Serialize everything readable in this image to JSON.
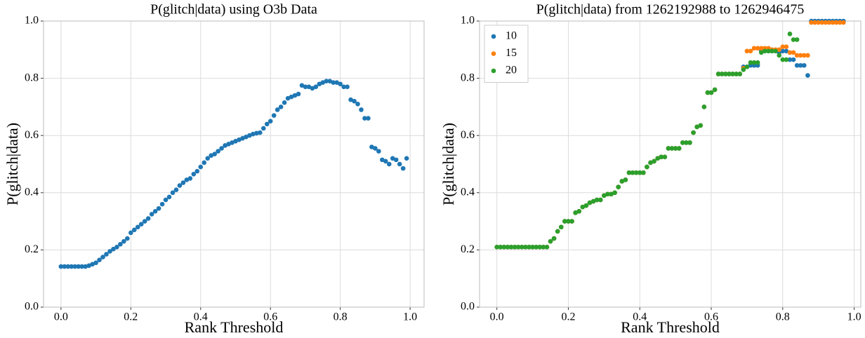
{
  "chart_data": [
    {
      "type": "scatter",
      "title": "P(glitch|data) using O3b Data",
      "xlabel": "Rank Threshold",
      "ylabel": "P(glitch|data)",
      "x": [
        0,
        0.01,
        0.02,
        0.03,
        0.04,
        0.05,
        0.06,
        0.07,
        0.08,
        0.09,
        0.1,
        0.11,
        0.12,
        0.13,
        0.14,
        0.15,
        0.16,
        0.17,
        0.18,
        0.19,
        0.2,
        0.21,
        0.22,
        0.23,
        0.24,
        0.25,
        0.26,
        0.27,
        0.28,
        0.29,
        0.3,
        0.31,
        0.32,
        0.33,
        0.34,
        0.35,
        0.36,
        0.37,
        0.38,
        0.39,
        0.4,
        0.41,
        0.42,
        0.43,
        0.44,
        0.45,
        0.46,
        0.47,
        0.48,
        0.49,
        0.5,
        0.51,
        0.52,
        0.53,
        0.54,
        0.55,
        0.56,
        0.57,
        0.58,
        0.59,
        0.6,
        0.61,
        0.62,
        0.63,
        0.64,
        0.65,
        0.66,
        0.67,
        0.68,
        0.69,
        0.7,
        0.71,
        0.72,
        0.73,
        0.74,
        0.75,
        0.76,
        0.77,
        0.78,
        0.79,
        0.8,
        0.81,
        0.82,
        0.83,
        0.84,
        0.85,
        0.86,
        0.87,
        0.88,
        0.89,
        0.9,
        0.91,
        0.92,
        0.93,
        0.94,
        0.95,
        0.96,
        0.97,
        0.98,
        0.99
      ],
      "values": [
        0.142,
        0.142,
        0.142,
        0.142,
        0.142,
        0.142,
        0.142,
        0.142,
        0.145,
        0.15,
        0.155,
        0.165,
        0.175,
        0.185,
        0.195,
        0.203,
        0.21,
        0.22,
        0.23,
        0.24,
        0.26,
        0.27,
        0.28,
        0.29,
        0.3,
        0.31,
        0.325,
        0.335,
        0.345,
        0.36,
        0.375,
        0.385,
        0.4,
        0.41,
        0.425,
        0.435,
        0.445,
        0.45,
        0.465,
        0.475,
        0.49,
        0.505,
        0.52,
        0.53,
        0.535,
        0.545,
        0.555,
        0.565,
        0.57,
        0.575,
        0.58,
        0.585,
        0.59,
        0.595,
        0.6,
        0.605,
        0.608,
        0.61,
        0.625,
        0.64,
        0.65,
        0.67,
        0.69,
        0.7,
        0.715,
        0.73,
        0.735,
        0.74,
        0.745,
        0.775,
        0.77,
        0.77,
        0.765,
        0.77,
        0.78,
        0.785,
        0.79,
        0.79,
        0.785,
        0.785,
        0.78,
        0.77,
        0.77,
        0.725,
        0.72,
        0.71,
        0.69,
        0.66,
        0.66,
        0.56,
        0.555,
        0.545,
        0.515,
        0.51,
        0.5,
        0.52,
        0.515,
        0.5,
        0.485,
        0.52
      ],
      "color": "#1f77b4",
      "xlim": [
        -0.05,
        1.04
      ],
      "ylim": [
        0,
        1
      ],
      "xticks": [
        {
          "value": 0,
          "label": "0.0"
        },
        0.2,
        0.4,
        0.6,
        0.8,
        {
          "value": 1,
          "label": "1.0"
        }
      ],
      "yticks": [
        {
          "value": 0,
          "label": "0.0"
        },
        0.2,
        0.4,
        0.6,
        0.8,
        {
          "value": 1,
          "label": "1.0"
        }
      ],
      "grid": true
    },
    {
      "type": "scatter",
      "title": "P(glitch|data) from 1262192988 to 1262946475",
      "xlabel": "Rank Threshold",
      "ylabel": "P(glitch|data)",
      "x": [
        0,
        0.01,
        0.02,
        0.03,
        0.04,
        0.05,
        0.06,
        0.07,
        0.08,
        0.09,
        0.1,
        0.11,
        0.12,
        0.13,
        0.14,
        0.15,
        0.16,
        0.17,
        0.18,
        0.19,
        0.2,
        0.21,
        0.22,
        0.23,
        0.24,
        0.25,
        0.26,
        0.27,
        0.28,
        0.29,
        0.3,
        0.31,
        0.32,
        0.33,
        0.34,
        0.35,
        0.36,
        0.37,
        0.38,
        0.39,
        0.4,
        0.41,
        0.42,
        0.43,
        0.44,
        0.45,
        0.46,
        0.47,
        0.48,
        0.49,
        0.5,
        0.51,
        0.52,
        0.53,
        0.54,
        0.55,
        0.56,
        0.57,
        0.58,
        0.59,
        0.6,
        0.61,
        0.62,
        0.63,
        0.64,
        0.65,
        0.66,
        0.67,
        0.68,
        0.69,
        0.7,
        0.71,
        0.72,
        0.73,
        0.74,
        0.75,
        0.76,
        0.77,
        0.78,
        0.79,
        0.8,
        0.81,
        0.82,
        0.83,
        0.84,
        0.85,
        0.86,
        0.87,
        0.88,
        0.89,
        0.9,
        0.91,
        0.92,
        0.93,
        0.94,
        0.95,
        0.96,
        0.97
      ],
      "series": [
        {
          "name": "10",
          "color": "#1f77b4",
          "values": [
            0.21,
            0.21,
            0.21,
            0.21,
            0.21,
            0.21,
            0.21,
            0.21,
            0.21,
            0.21,
            0.21,
            0.21,
            0.21,
            0.21,
            0.21,
            0.23,
            0.24,
            0.265,
            0.28,
            0.3,
            0.3,
            0.3,
            0.33,
            0.335,
            0.35,
            0.355,
            0.365,
            0.37,
            0.375,
            0.375,
            0.39,
            0.395,
            0.395,
            0.4,
            0.42,
            0.44,
            0.445,
            0.47,
            0.47,
            0.47,
            0.47,
            0.47,
            0.49,
            0.505,
            0.51,
            0.52,
            0.525,
            0.525,
            0.555,
            0.555,
            0.555,
            0.555,
            0.575,
            0.575,
            0.575,
            0.61,
            0.63,
            0.635,
            0.7,
            0.75,
            0.75,
            0.76,
            0.815,
            0.815,
            0.815,
            0.815,
            0.815,
            0.815,
            0.815,
            0.84,
            0.84,
            0.845,
            0.845,
            0.845,
            0.895,
            0.895,
            0.895,
            0.895,
            0.895,
            0.89,
            0.895,
            0.895,
            0.865,
            0.865,
            0.845,
            0.845,
            0.845,
            0.81,
            1,
            1,
            1,
            1,
            1,
            1,
            1,
            1,
            1,
            1
          ]
        },
        {
          "name": "15",
          "color": "#ff7f0e",
          "values": [
            0.21,
            0.21,
            0.21,
            0.21,
            0.21,
            0.21,
            0.21,
            0.21,
            0.21,
            0.21,
            0.21,
            0.21,
            0.21,
            0.21,
            0.21,
            0.23,
            0.24,
            0.265,
            0.28,
            0.3,
            0.3,
            0.3,
            0.33,
            0.335,
            0.35,
            0.355,
            0.365,
            0.37,
            0.375,
            0.375,
            0.39,
            0.395,
            0.395,
            0.4,
            0.42,
            0.44,
            0.445,
            0.47,
            0.47,
            0.47,
            0.47,
            0.47,
            0.49,
            0.505,
            0.51,
            0.52,
            0.525,
            0.525,
            0.555,
            0.555,
            0.555,
            0.555,
            0.575,
            0.575,
            0.575,
            0.61,
            0.63,
            0.635,
            0.7,
            0.75,
            0.75,
            0.76,
            0.815,
            0.815,
            0.815,
            0.815,
            0.815,
            0.815,
            0.815,
            0.835,
            0.895,
            0.895,
            0.905,
            0.905,
            0.905,
            0.905,
            0.905,
            0.9,
            0.9,
            0.9,
            0.91,
            0.91,
            0.89,
            0.89,
            0.88,
            0.88,
            0.88,
            0.88,
            0.995,
            0.995,
            0.995,
            0.995,
            0.995,
            0.995,
            0.995,
            0.995,
            0.995,
            0.995
          ]
        },
        {
          "name": "20",
          "color": "#2ca02c",
          "values": [
            0.21,
            0.21,
            0.21,
            0.21,
            0.21,
            0.21,
            0.21,
            0.21,
            0.21,
            0.21,
            0.21,
            0.21,
            0.21,
            0.21,
            0.21,
            0.23,
            0.24,
            0.265,
            0.28,
            0.3,
            0.3,
            0.3,
            0.33,
            0.335,
            0.35,
            0.355,
            0.365,
            0.37,
            0.375,
            0.375,
            0.39,
            0.395,
            0.395,
            0.4,
            0.42,
            0.44,
            0.445,
            0.47,
            0.47,
            0.47,
            0.47,
            0.47,
            0.49,
            0.505,
            0.51,
            0.52,
            0.525,
            0.525,
            0.555,
            0.555,
            0.555,
            0.555,
            0.575,
            0.575,
            0.575,
            0.61,
            0.63,
            0.635,
            0.7,
            0.75,
            0.75,
            0.76,
            0.815,
            0.815,
            0.815,
            0.815,
            0.815,
            0.815,
            0.815,
            0.83,
            0.84,
            0.855,
            0.855,
            0.855,
            0.89,
            0.895,
            0.895,
            0.895,
            0.895,
            0.88,
            0.865,
            0.865,
            0.955,
            0.935,
            0.935,
            null,
            null,
            null,
            null,
            null,
            null,
            null,
            null,
            null,
            null,
            null,
            null,
            null
          ]
        }
      ],
      "xlim": [
        -0.0485,
        1.0185
      ],
      "ylim": [
        0,
        1
      ],
      "xticks": [
        {
          "value": 0,
          "label": "0.0"
        },
        0.2,
        0.4,
        0.6,
        0.8,
        {
          "value": 1,
          "label": "1.0"
        }
      ],
      "yticks": [
        {
          "value": 0,
          "label": "0.0"
        },
        0.2,
        0.4,
        0.6,
        0.8,
        {
          "value": 1,
          "label": "1.0"
        }
      ],
      "grid": true,
      "legend": "upper left"
    }
  ]
}
